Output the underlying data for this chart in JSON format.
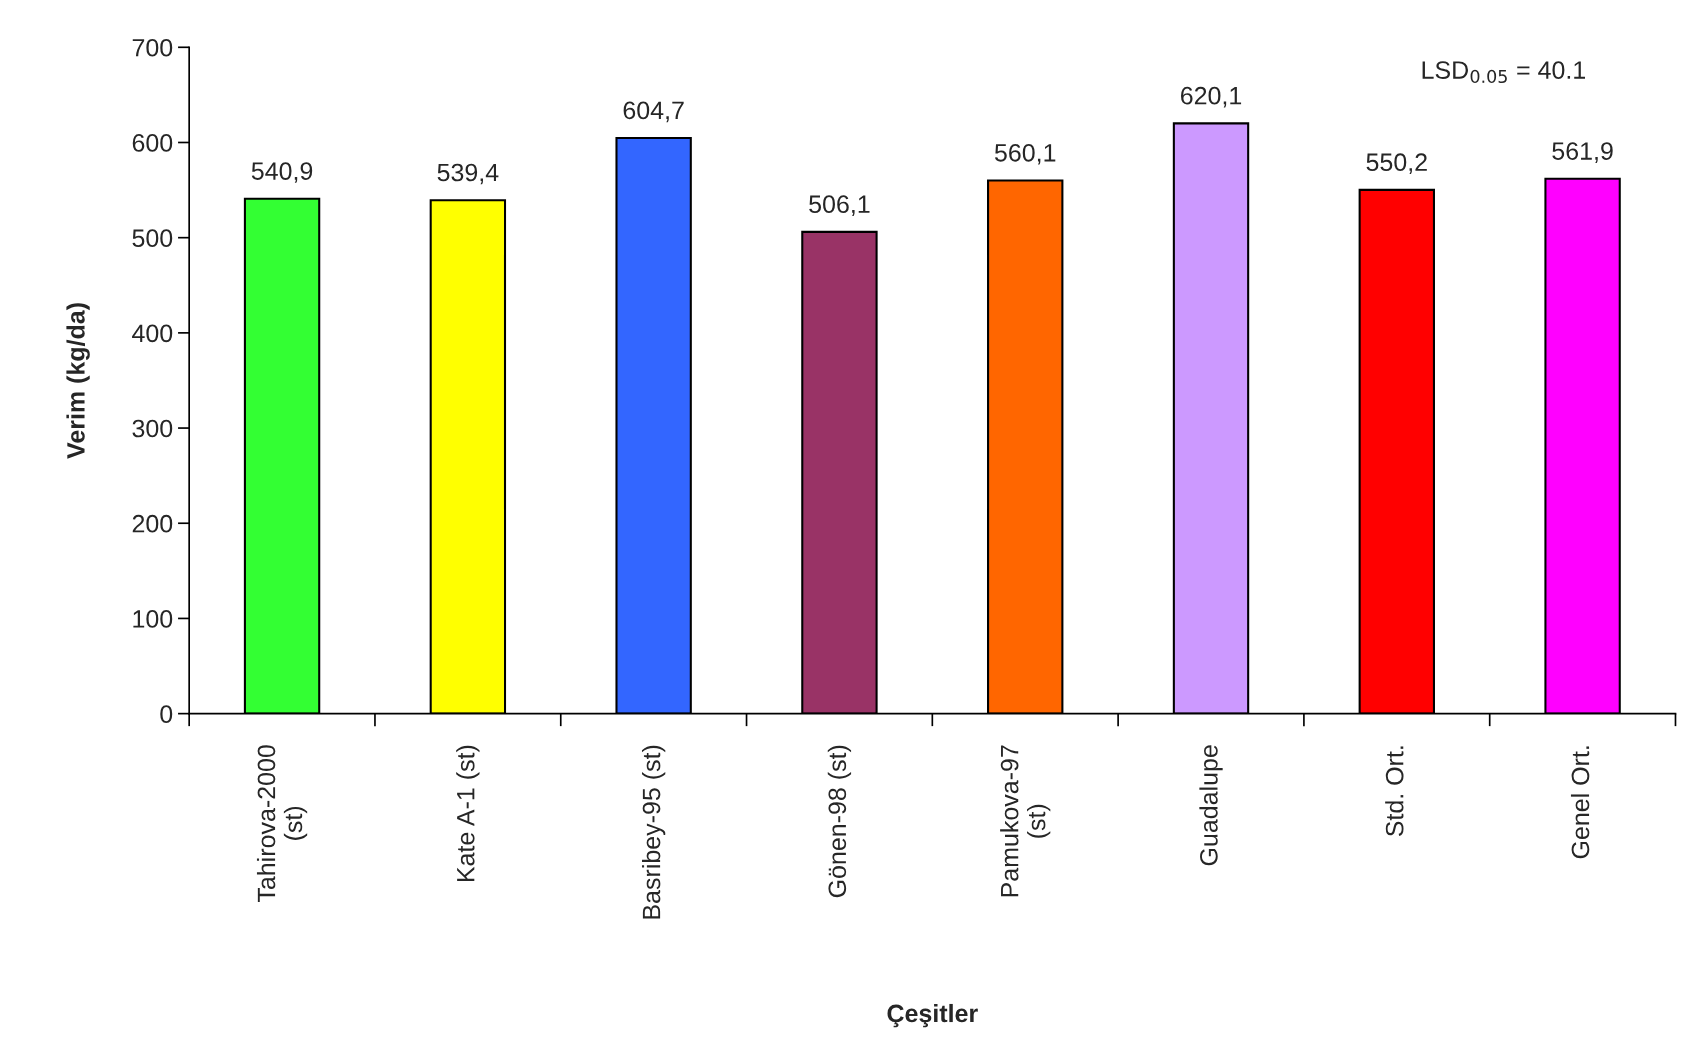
{
  "chart_data": {
    "type": "bar",
    "xlabel": "Çeşitler",
    "ylabel": "Verim (kg/da)",
    "categories": [
      "Tahirova-2000\n(st)",
      "Kate A-1 (st)",
      "Basribey-95 (st)",
      "Gönen-98 (st)",
      "Pamukova-97\n(st)",
      "Guadalupe",
      "Std. Ort.",
      "Genel Ort."
    ],
    "values": [
      540.9,
      539.4,
      604.7,
      506.1,
      560.1,
      620.1,
      550.2,
      561.9
    ],
    "value_labels": [
      "540,9",
      "539,4",
      "604,7",
      "506,1",
      "560,1",
      "620,1",
      "550,2",
      "561,9"
    ],
    "colors": [
      "#33ff33",
      "#ffff00",
      "#3366ff",
      "#993366",
      "#ff6600",
      "#cc99ff",
      "#ff0000",
      "#ff00ff"
    ],
    "ylim": [
      0,
      700
    ],
    "yticks": [
      0,
      100,
      200,
      300,
      400,
      500,
      600,
      700
    ],
    "grid": false,
    "annotations": [
      "LSD$_{0.05}$ = 40.1"
    ]
  }
}
